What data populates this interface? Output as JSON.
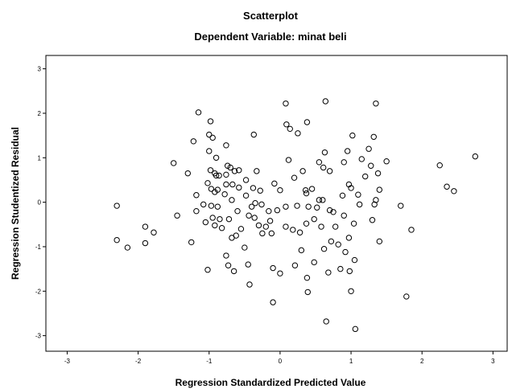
{
  "chart_data": {
    "type": "scatter",
    "title": "Scatterplot",
    "subtitle": "Dependent Variable: minat beli",
    "xlabel": "Regression Standardized Predicted Value",
    "ylabel": "Regression Studentized Residual",
    "xlim": [
      -3.3,
      3.2
    ],
    "ylim": [
      -3.35,
      3.3
    ],
    "x_ticks": [
      -3,
      -2,
      -1,
      0,
      1,
      2,
      3
    ],
    "y_ticks": [
      -3,
      -2,
      -1,
      0,
      1,
      2,
      3
    ],
    "grid": false,
    "points": [
      [
        -2.3,
        -0.08
      ],
      [
        -2.3,
        -0.85
      ],
      [
        -2.15,
        -1.02
      ],
      [
        -1.9,
        -0.55
      ],
      [
        -1.9,
        -0.92
      ],
      [
        -1.78,
        -0.68
      ],
      [
        -1.5,
        0.88
      ],
      [
        -1.45,
        -0.3
      ],
      [
        -1.3,
        0.65
      ],
      [
        -1.25,
        -0.9
      ],
      [
        -1.22,
        1.37
      ],
      [
        -1.18,
        0.16
      ],
      [
        -1.18,
        -0.2
      ],
      [
        -1.15,
        2.02
      ],
      [
        -1.08,
        -0.05
      ],
      [
        -1.05,
        -0.45
      ],
      [
        -1.02,
        0.43
      ],
      [
        -1.02,
        -1.52
      ],
      [
        -1.0,
        1.52
      ],
      [
        -1.0,
        1.15
      ],
      [
        -0.98,
        1.82
      ],
      [
        -0.98,
        0.72
      ],
      [
        -0.97,
        0.3
      ],
      [
        -0.97,
        -0.08
      ],
      [
        -0.95,
        1.45
      ],
      [
        -0.95,
        -0.35
      ],
      [
        -0.92,
        0.65
      ],
      [
        -0.92,
        0.23
      ],
      [
        -0.92,
        -0.52
      ],
      [
        -0.9,
        1.0
      ],
      [
        -0.9,
        0.6
      ],
      [
        -0.88,
        -0.1
      ],
      [
        -0.88,
        0.28
      ],
      [
        -0.86,
        0.6
      ],
      [
        -0.85,
        -0.38
      ],
      [
        -0.82,
        -0.58
      ],
      [
        -0.78,
        0.18
      ],
      [
        -0.76,
        -1.2
      ],
      [
        -0.76,
        1.28
      ],
      [
        -0.76,
        0.62
      ],
      [
        -0.76,
        0.4
      ],
      [
        -0.74,
        0.82
      ],
      [
        -0.73,
        -1.42
      ],
      [
        -0.72,
        -0.38
      ],
      [
        -0.7,
        0.78
      ],
      [
        -0.68,
        0.05
      ],
      [
        -0.68,
        -0.8
      ],
      [
        -0.67,
        0.4
      ],
      [
        -0.65,
        -1.55
      ],
      [
        -0.64,
        0.7
      ],
      [
        -0.62,
        -0.75
      ],
      [
        -0.6,
        -0.2
      ],
      [
        -0.58,
        0.33
      ],
      [
        -0.58,
        0.72
      ],
      [
        -0.55,
        -0.6
      ],
      [
        -0.5,
        -1.02
      ],
      [
        -0.48,
        0.5
      ],
      [
        -0.48,
        0.15
      ],
      [
        -0.45,
        -1.4
      ],
      [
        -0.44,
        -0.3
      ],
      [
        -0.43,
        -1.85
      ],
      [
        -0.4,
        -0.1
      ],
      [
        -0.38,
        0.32
      ],
      [
        -0.37,
        1.52
      ],
      [
        -0.36,
        -0.35
      ],
      [
        -0.35,
        -0.02
      ],
      [
        -0.33,
        0.7
      ],
      [
        -0.3,
        -0.52
      ],
      [
        -0.28,
        0.26
      ],
      [
        -0.26,
        -0.05
      ],
      [
        -0.25,
        -0.7
      ],
      [
        -0.2,
        -0.55
      ],
      [
        -0.16,
        -0.2
      ],
      [
        -0.14,
        -0.42
      ],
      [
        -0.12,
        -0.7
      ],
      [
        -0.1,
        -1.48
      ],
      [
        -0.1,
        -2.25
      ],
      [
        -0.08,
        0.42
      ],
      [
        -0.04,
        -0.18
      ],
      [
        0.0,
        -1.6
      ],
      [
        0.0,
        0.27
      ],
      [
        0.08,
        2.22
      ],
      [
        0.08,
        -0.55
      ],
      [
        0.08,
        -0.1
      ],
      [
        0.09,
        1.75
      ],
      [
        0.12,
        0.95
      ],
      [
        0.14,
        1.65
      ],
      [
        0.18,
        -0.62
      ],
      [
        0.2,
        0.55
      ],
      [
        0.21,
        -1.42
      ],
      [
        0.24,
        -0.08
      ],
      [
        0.25,
        1.55
      ],
      [
        0.28,
        -0.68
      ],
      [
        0.3,
        -1.08
      ],
      [
        0.32,
        0.7
      ],
      [
        0.36,
        0.27
      ],
      [
        0.37,
        0.2
      ],
      [
        0.37,
        -0.48
      ],
      [
        0.38,
        1.8
      ],
      [
        0.38,
        -1.7
      ],
      [
        0.39,
        -2.02
      ],
      [
        0.4,
        -0.1
      ],
      [
        0.45,
        0.3
      ],
      [
        0.48,
        -0.38
      ],
      [
        0.48,
        -1.35
      ],
      [
        0.52,
        -0.12
      ],
      [
        0.55,
        0.05
      ],
      [
        0.55,
        0.9
      ],
      [
        0.58,
        -0.55
      ],
      [
        0.6,
        0.05
      ],
      [
        0.61,
        0.78
      ],
      [
        0.62,
        -1.05
      ],
      [
        0.63,
        1.12
      ],
      [
        0.64,
        2.27
      ],
      [
        0.65,
        -2.68
      ],
      [
        0.68,
        -1.58
      ],
      [
        0.7,
        0.7
      ],
      [
        0.7,
        -0.18
      ],
      [
        0.72,
        -0.88
      ],
      [
        0.75,
        -0.22
      ],
      [
        0.78,
        -0.55
      ],
      [
        0.82,
        -0.95
      ],
      [
        0.85,
        -1.5
      ],
      [
        0.88,
        0.15
      ],
      [
        0.9,
        0.9
      ],
      [
        0.9,
        -0.3
      ],
      [
        0.92,
        -1.12
      ],
      [
        0.95,
        1.15
      ],
      [
        0.97,
        0.4
      ],
      [
        0.97,
        -0.8
      ],
      [
        0.98,
        -1.55
      ],
      [
        1.0,
        -2.0
      ],
      [
        1.0,
        0.32
      ],
      [
        1.02,
        1.5
      ],
      [
        1.04,
        -0.48
      ],
      [
        1.05,
        -1.3
      ],
      [
        1.06,
        -2.85
      ],
      [
        1.1,
        0.17
      ],
      [
        1.12,
        -0.05
      ],
      [
        1.15,
        0.97
      ],
      [
        1.2,
        0.58
      ],
      [
        1.25,
        1.2
      ],
      [
        1.28,
        0.82
      ],
      [
        1.3,
        -0.4
      ],
      [
        1.32,
        1.47
      ],
      [
        1.33,
        -0.05
      ],
      [
        1.35,
        2.22
      ],
      [
        1.35,
        0.05
      ],
      [
        1.38,
        0.65
      ],
      [
        1.4,
        -0.88
      ],
      [
        1.4,
        0.28
      ],
      [
        1.5,
        0.92
      ],
      [
        1.7,
        -0.08
      ],
      [
        1.78,
        -2.12
      ],
      [
        1.85,
        -0.62
      ],
      [
        2.25,
        0.83
      ],
      [
        2.35,
        0.35
      ],
      [
        2.45,
        0.25
      ],
      [
        2.75,
        1.03
      ]
    ]
  }
}
